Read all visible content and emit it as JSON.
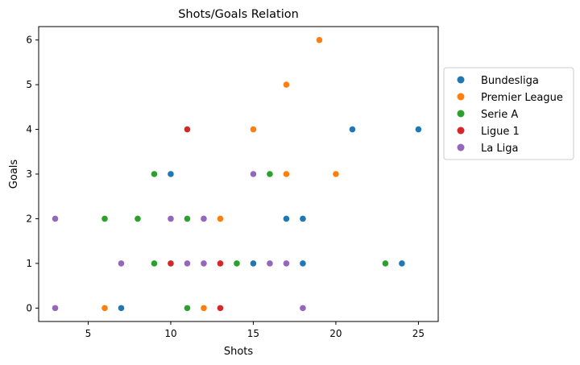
{
  "chart_data": {
    "type": "scatter",
    "title": "Shots/Goals Relation",
    "xlabel": "Shots",
    "ylabel": "Goals",
    "xlim": [
      2,
      26.2
    ],
    "ylim": [
      -0.3,
      6.3
    ],
    "xticks": [
      5,
      10,
      15,
      20,
      25
    ],
    "yticks": [
      0,
      1,
      2,
      3,
      4,
      5,
      6
    ],
    "grid": false,
    "legend_position": "outside-right",
    "series": [
      {
        "name": "Bundesliga",
        "color": "#1f77b4",
        "points": [
          [
            7,
            0
          ],
          [
            10,
            3
          ],
          [
            15,
            1
          ],
          [
            17,
            2
          ],
          [
            18,
            2
          ],
          [
            18,
            1
          ],
          [
            21,
            4
          ],
          [
            24,
            1
          ],
          [
            25,
            4
          ]
        ]
      },
      {
        "name": "Premier League",
        "color": "#ff7f0e",
        "points": [
          [
            6,
            0
          ],
          [
            12,
            0
          ],
          [
            13,
            2
          ],
          [
            15,
            4
          ],
          [
            17,
            5
          ],
          [
            17,
            3
          ],
          [
            19,
            6
          ],
          [
            20,
            3
          ]
        ]
      },
      {
        "name": "Serie A",
        "color": "#2ca02c",
        "points": [
          [
            6,
            2
          ],
          [
            8,
            2
          ],
          [
            9,
            3
          ],
          [
            9,
            1
          ],
          [
            11,
            2
          ],
          [
            11,
            0
          ],
          [
            14,
            1
          ],
          [
            16,
            3
          ],
          [
            23,
            1
          ]
        ]
      },
      {
        "name": "Ligue 1",
        "color": "#d62728",
        "points": [
          [
            10,
            1
          ],
          [
            11,
            4
          ],
          [
            13,
            1
          ],
          [
            13,
            0
          ]
        ]
      },
      {
        "name": "La Liga",
        "color": "#9467bd",
        "points": [
          [
            3,
            2
          ],
          [
            3,
            0
          ],
          [
            7,
            1
          ],
          [
            10,
            2
          ],
          [
            11,
            1
          ],
          [
            12,
            2
          ],
          [
            12,
            1
          ],
          [
            15,
            3
          ],
          [
            16,
            1
          ],
          [
            17,
            1
          ],
          [
            18,
            0
          ]
        ]
      }
    ]
  }
}
